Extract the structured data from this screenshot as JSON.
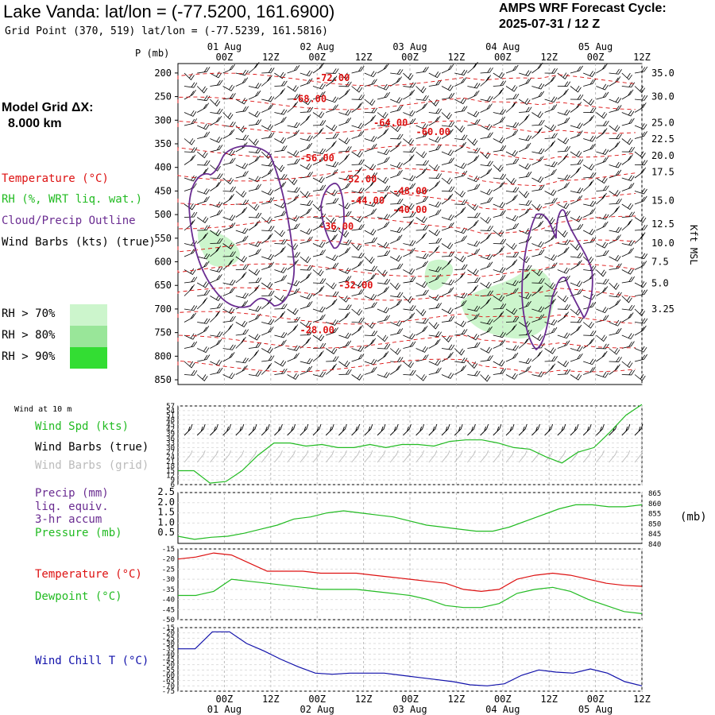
{
  "header": {
    "title": "Lake Vanda:  lat/lon = (-77.5200, 161.6900)",
    "subtitle": "Grid Point (370, 519) lat/lon = (-77.5239, 161.5816)",
    "forecast_line1": "AMPS WRF Forecast Cycle:",
    "forecast_line2": "2025-07-31 / 12  Z"
  },
  "left_legend": {
    "model_grid_line1": "Model Grid ΔX:",
    "model_grid_line2": "8.000 km",
    "temperature": "Temperature (°C)",
    "rh": "RH (%, WRT liq. wat.)",
    "cloud": "Cloud/Precip Outline",
    "wind_barbs": "Wind Barbs (kts) (true)",
    "rh70": "RH > 70%",
    "rh80": "RH > 80%",
    "rh90": "RH > 90%",
    "rh_colors": [
      "#ccf5cc",
      "#99e699",
      "#33dd33"
    ]
  },
  "units": {
    "pressure_axis": "P (mb)",
    "height_axis": "Kft MSL",
    "surface_pressure_unit": "(mb)"
  },
  "panel_labels": {
    "wind10": "Wind at 10 m",
    "wind_spd": "Wind Spd (kts)",
    "wind_barbs_true": "Wind Barbs (true)",
    "wind_barbs_grid": "Wind Barbs (grid)",
    "precip1": "Precip (mm)",
    "precip2": "liq. equiv.",
    "precip3": "3-hr accum",
    "pressure": "Pressure (mb)",
    "temperature": "Temperature (°C)",
    "dewpoint": "Dewpoint (°C)",
    "windchill": "Wind Chill T (°C)"
  },
  "colors": {
    "temperature": "#dd1111",
    "dewpoint": "#22bb22",
    "cloud": "#6a2c91",
    "windchill": "#1010aa",
    "pressure": "#22bb22",
    "wind": "#22bb22"
  },
  "chart_data": [
    {
      "type": "line",
      "panel": "cross-section",
      "x_ticks": [
        "00Z",
        "12Z",
        "00Z",
        "12Z",
        "00Z",
        "12Z",
        "00Z",
        "12Z",
        "00Z",
        "12Z"
      ],
      "x_hours": [
        12,
        24,
        36,
        48,
        60,
        72,
        84,
        96,
        108,
        120
      ],
      "date_labels": [
        "01 Aug",
        "02 Aug",
        "03 Aug",
        "04 Aug",
        "05 Aug"
      ],
      "date_hours": [
        12,
        36,
        60,
        84,
        108
      ],
      "xlim": [
        0,
        120
      ],
      "y_left_ticks": [
        200,
        250,
        300,
        350,
        400,
        450,
        500,
        550,
        600,
        650,
        700,
        750,
        800,
        850
      ],
      "ylim": [
        850,
        200
      ],
      "y_right_ticks": [
        {
          "label": "35.0",
          "p": 200
        },
        {
          "label": "30.0",
          "p": 250
        },
        {
          "label": "25.0",
          "p": 305
        },
        {
          "label": "22.5",
          "p": 340
        },
        {
          "label": "20.0",
          "p": 375
        },
        {
          "label": "17.5",
          "p": 410
        },
        {
          "label": "15.0",
          "p": 470
        },
        {
          "label": "12.5",
          "p": 520
        },
        {
          "label": "10.0",
          "p": 560
        },
        {
          "label": "7.5",
          "p": 600
        },
        {
          "label": "5.0",
          "p": 645
        },
        {
          "label": "3.25",
          "p": 700
        }
      ],
      "temperature_contour_labels": [
        {
          "label": "-72.00",
          "t": 40,
          "p": 210
        },
        {
          "label": "-68.00",
          "t": 34,
          "p": 255
        },
        {
          "label": "-64.00",
          "t": 55,
          "p": 305
        },
        {
          "label": "-60.00",
          "t": 66,
          "p": 325
        },
        {
          "label": "-56.00",
          "t": 36,
          "p": 380
        },
        {
          "label": "-52.00",
          "t": 47,
          "p": 425
        },
        {
          "label": "-48.00",
          "t": 60,
          "p": 450
        },
        {
          "label": "-44.00",
          "t": 49,
          "p": 470
        },
        {
          "label": "-40.00",
          "t": 60,
          "p": 490
        },
        {
          "label": "-36.00",
          "t": 41,
          "p": 525
        },
        {
          "label": "-32.00",
          "t": 46,
          "p": 650
        },
        {
          "label": "-28.00",
          "t": 36,
          "p": 745
        }
      ]
    },
    {
      "type": "line",
      "panel": "wind-speed",
      "y_ticks": [
        6,
        9,
        12,
        15,
        18,
        21,
        24,
        27,
        30,
        33,
        36,
        39,
        42,
        45,
        48,
        51,
        54,
        57
      ],
      "ylim": [
        6,
        57
      ],
      "series": [
        {
          "name": "Wind Spd (kts)",
          "values": [
            15,
            15,
            7,
            8,
            15,
            25,
            33,
            33,
            31,
            32,
            30,
            30,
            32,
            30,
            32,
            32,
            31,
            34,
            35,
            35,
            33,
            30,
            29,
            24,
            20,
            27,
            30,
            40,
            51,
            58
          ]
        }
      ]
    },
    {
      "type": "line",
      "panel": "precip-pressure",
      "y_left_ticks": [
        0.5,
        1.0,
        1.5,
        2.0,
        2.5
      ],
      "ylim_left": [
        0,
        2.5
      ],
      "y_right_ticks": [
        840,
        845,
        850,
        855,
        860,
        865
      ],
      "ylim_right": [
        840,
        865
      ],
      "series": [
        {
          "name": "Pressure (mb)",
          "values": [
            843.5,
            842,
            843,
            843.5,
            845,
            847,
            849,
            852,
            853,
            855,
            856,
            855,
            854,
            853,
            851,
            849,
            848,
            847,
            846,
            846,
            848,
            851,
            854,
            857,
            859,
            859,
            858,
            858,
            859
          ]
        }
      ]
    },
    {
      "type": "line",
      "panel": "temperature",
      "y_ticks": [
        -15,
        -20,
        -25,
        -30,
        -35,
        -40,
        -45,
        -50
      ],
      "ylim": [
        -50,
        -15
      ],
      "series": [
        {
          "name": "Temperature (°C)",
          "values": [
            -20,
            -19,
            -17,
            -18,
            -22,
            -26,
            -26,
            -26,
            -27,
            -27,
            -27,
            -28,
            -29,
            -30,
            -31,
            -32,
            -35,
            -36,
            -35,
            -30,
            -28,
            -27,
            -28,
            -30,
            -32,
            -33,
            -33.5
          ]
        },
        {
          "name": "Dewpoint (°C)",
          "values": [
            -38,
            -38,
            -36,
            -30,
            -31,
            -32,
            -33,
            -34,
            -35,
            -35,
            -35,
            -36,
            -37,
            -38,
            -40,
            -43,
            -44,
            -44,
            -42,
            -37,
            -35,
            -34,
            -36,
            -40,
            -43,
            -46,
            -47
          ]
        }
      ]
    },
    {
      "type": "line",
      "panel": "wind-chill",
      "y_ticks": [
        -15,
        -20,
        -25,
        -30,
        -35,
        -40,
        -45,
        -50,
        -55,
        -60,
        -65,
        -70,
        -75
      ],
      "ylim": [
        -75,
        -15
      ],
      "series": [
        {
          "name": "Wind Chill T (°C)",
          "values": [
            -35,
            -35,
            -19,
            -19,
            -30,
            -37,
            -45,
            -52,
            -58,
            -59,
            -58,
            -58,
            -58,
            -60,
            -62,
            -64,
            -66,
            -69,
            -70,
            -68,
            -60,
            -55,
            -57,
            -58,
            -54,
            -58,
            -66,
            -70
          ]
        }
      ]
    }
  ]
}
